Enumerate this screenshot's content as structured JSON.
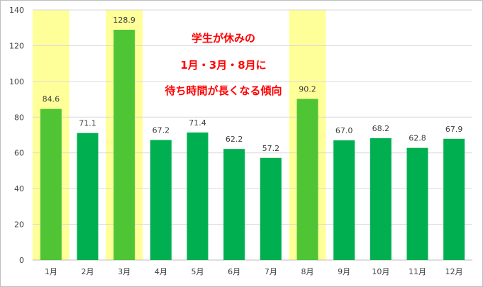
{
  "chart_data": {
    "type": "bar",
    "categories": [
      "1月",
      "2月",
      "3月",
      "4月",
      "5月",
      "6月",
      "7月",
      "8月",
      "9月",
      "10月",
      "11月",
      "12月"
    ],
    "values": [
      84.6,
      71.1,
      128.9,
      67.2,
      71.4,
      62.2,
      57.2,
      90.2,
      67.0,
      68.2,
      62.8,
      67.9
    ],
    "value_labels": [
      "84.6",
      "71.1",
      "128.9",
      "67.2",
      "71.4",
      "62.2",
      "57.2",
      "90.2",
      "67.0",
      "68.2",
      "62.8",
      "67.9"
    ],
    "highlighted_categories": [
      "1月",
      "3月",
      "8月"
    ],
    "ylim": [
      0,
      140
    ],
    "yticks": [
      0,
      20,
      40,
      60,
      80,
      100,
      120,
      140
    ],
    "grid": true,
    "title": "",
    "xlabel": "",
    "ylabel": "",
    "annotation_lines": [
      "学生が休みの",
      "1月・3月・8月に",
      "待ち時間が長くなる傾向"
    ]
  },
  "colors": {
    "bar": "#00b050",
    "highlight_bar": "#4fc535",
    "highlight_band": "#ffff99",
    "grid": "#d9d9d9",
    "axis_text": "#404040",
    "annotation": "#ff0000"
  }
}
